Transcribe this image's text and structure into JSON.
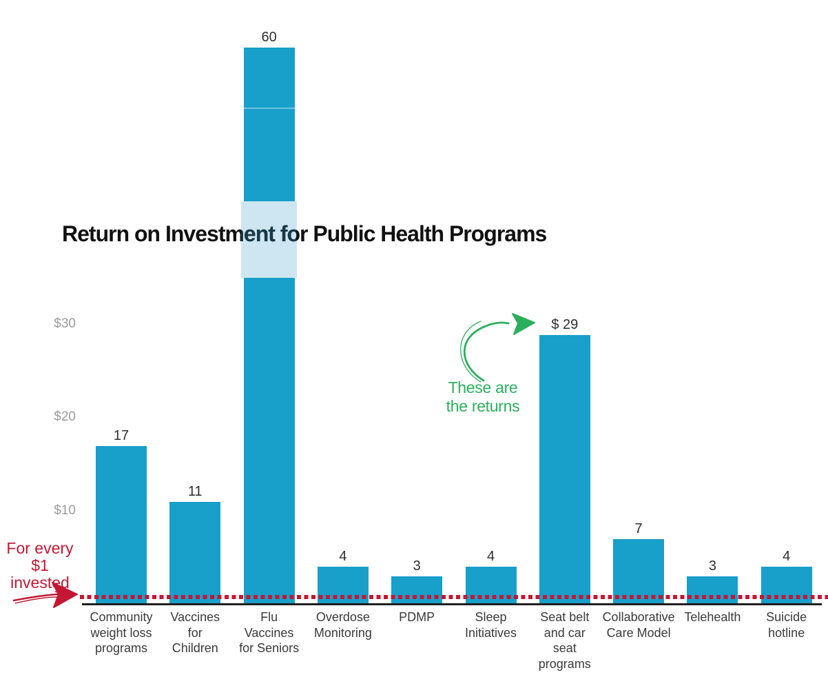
{
  "chart_data": {
    "type": "bar",
    "title": "Return on Investment for Public Health Programs",
    "categories": [
      "Community weight loss programs",
      "Vaccines for Children",
      "Flu Vaccines for Seniors",
      "Overdose Monitoring",
      "PDMP",
      "Sleep Initiatives",
      "Seat belt and car seat programs",
      "Collaborative Care Model",
      "Telehealth",
      "Suicide hotline"
    ],
    "category_lines": [
      [
        "Community",
        "weight loss",
        "programs"
      ],
      [
        "Vaccines",
        "for",
        "Children"
      ],
      [
        "Flu",
        "Vaccines",
        "for Seniors"
      ],
      [
        "Overdose",
        "Monitoring"
      ],
      [
        "PDMP"
      ],
      [
        "Sleep",
        "Initiatives"
      ],
      [
        "Seat belt",
        "and car",
        "seat",
        "programs"
      ],
      [
        "Collaborative",
        "Care Model"
      ],
      [
        "Telehealth"
      ],
      [
        "Suicide",
        "hotline"
      ]
    ],
    "values": [
      17,
      11,
      60,
      4,
      3,
      4,
      29,
      7,
      3,
      4
    ],
    "value_labels": [
      "17",
      "11",
      "60",
      "4",
      "3",
      "4",
      "$ 29",
      "7",
      "3",
      "4"
    ],
    "y_ticks": [
      {
        "label": "$30",
        "value": 30
      },
      {
        "label": "$20",
        "value": 20
      },
      {
        "label": "$10",
        "value": 10
      }
    ],
    "reference_line": {
      "value": 1,
      "style": "dotted"
    },
    "ylim": [
      0,
      65
    ],
    "grid": false,
    "legend": false,
    "xlabel": "",
    "ylabel": ""
  },
  "annotations": {
    "invested": {
      "lines": [
        "For every",
        "$1",
        "invested"
      ]
    },
    "returns": {
      "lines": [
        "These are",
        "the returns"
      ]
    }
  },
  "colors": {
    "bar": "#189fca",
    "bar_highlight_band": "#cee6f1",
    "title": "#111111",
    "title_over_band": "#18394a",
    "axis_line": "#1f1f1f",
    "tick_label": "#9b9b9b",
    "value_label": "#2e2e2e",
    "category_label": "#3a3a3a",
    "red": "#c41734",
    "green": "#2ab05c"
  }
}
